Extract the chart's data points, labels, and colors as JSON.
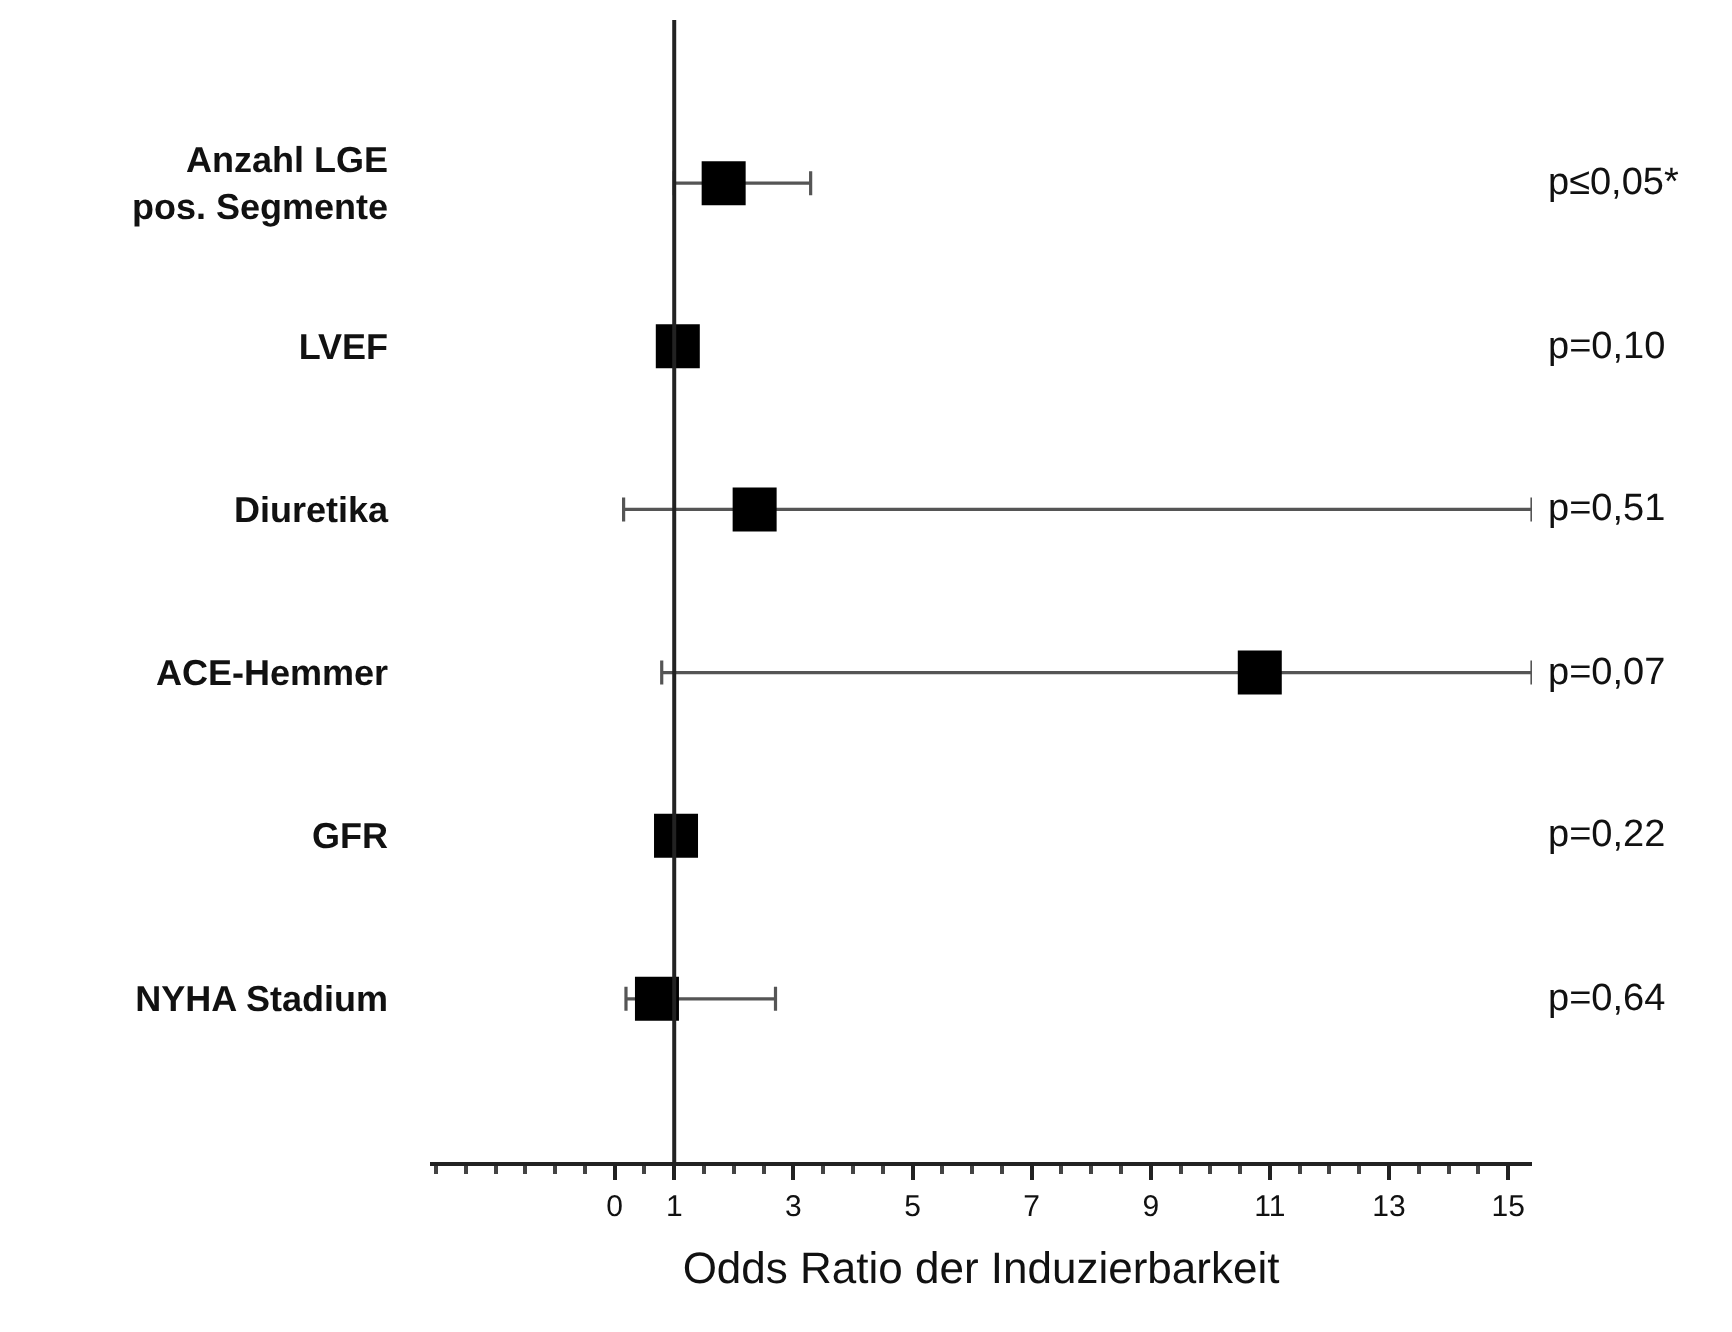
{
  "chart_data": {
    "type": "scatter",
    "orientation": "horizontal",
    "xlabel": "Odds Ratio der Induzierbarkeit",
    "categories": [
      "Anzahl LGE pos. Segmente",
      "LVEF",
      "Diuretika",
      "ACE-Hemmer",
      "GFR",
      "NYHA Stadium"
    ],
    "series": [
      {
        "color": "#000000",
        "values": [
          1.83,
          1.06,
          2.35,
          10.83,
          1.03,
          0.71
        ],
        "errors": [
          [
            1.0,
            3.29
          ],
          null,
          [
            0.15,
            15.4
          ],
          [
            0.79,
            15.4
          ],
          null,
          [
            0.19,
            2.7
          ]
        ]
      }
    ],
    "xlim": [
      -3.1,
      15.4
    ],
    "xticks": [
      0,
      1,
      3,
      5,
      7,
      9,
      11,
      13,
      15
    ],
    "ref_lines": [
      {
        "axis": "x",
        "value": 1,
        "color": "#222222"
      }
    ],
    "annotations": [
      "p≤0,05*",
      "p=0,10",
      "p=0,51",
      "p=0,07",
      "p=0,22",
      "p=0,64"
    ],
    "marker": "square"
  }
}
